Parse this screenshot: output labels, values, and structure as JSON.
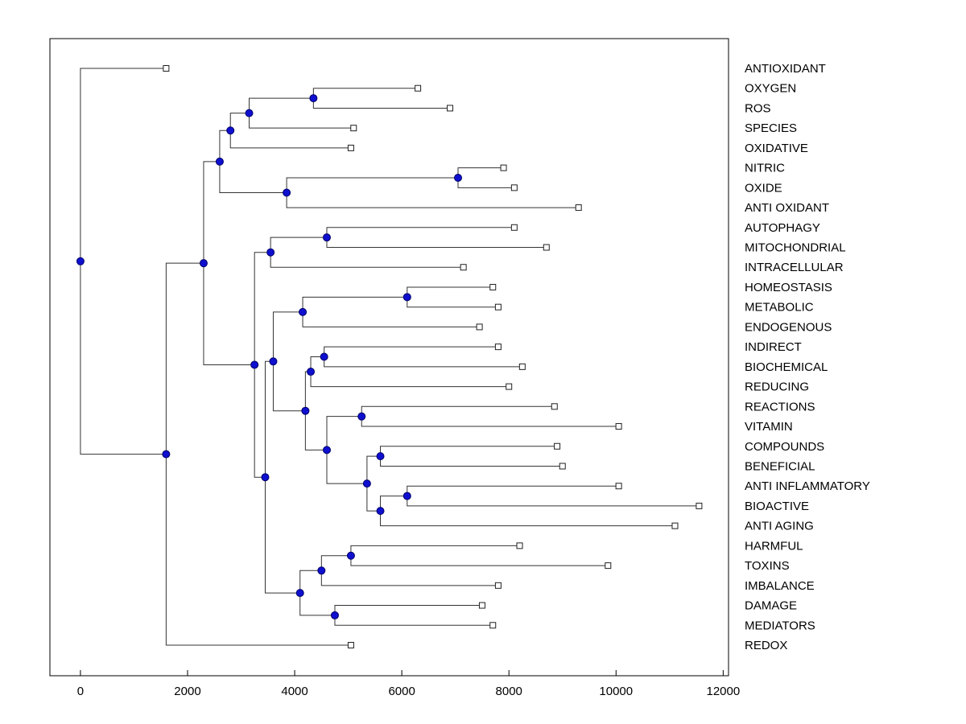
{
  "figure": {
    "background": "#ffffff"
  },
  "chart_data": {
    "type": "dendrogram",
    "orientation": "root-left-leaves-right",
    "title": "",
    "xlabel": "",
    "ylabel": "",
    "xlim": [
      -570,
      12100
    ],
    "x_ticks": [
      0,
      2000,
      4000,
      6000,
      8000,
      10000,
      12000
    ],
    "x_tick_labels": [
      "0",
      "2000",
      "4000",
      "6000",
      "8000",
      "10000",
      "12000"
    ],
    "grid": false,
    "legend": false,
    "colors": {
      "background": "#ffffff",
      "line": "#333333",
      "axis": "#000000",
      "node_fill": "#0f0fd0",
      "node_stroke": "#000066",
      "leaf_fill": "#ffffff",
      "leaf_stroke": "#202020",
      "text": "#000000"
    },
    "leaves": [
      {
        "label": "ANTIOXIDANT",
        "dist": 1600
      },
      {
        "label": "OXYGEN",
        "dist": 6300
      },
      {
        "label": "ROS",
        "dist": 6900
      },
      {
        "label": "SPECIES",
        "dist": 5100
      },
      {
        "label": "OXIDATIVE",
        "dist": 5050
      },
      {
        "label": "NITRIC",
        "dist": 7900
      },
      {
        "label": "OXIDE",
        "dist": 8100
      },
      {
        "label": "ANTI OXIDANT",
        "dist": 9300
      },
      {
        "label": "AUTOPHAGY",
        "dist": 8100
      },
      {
        "label": "MITOCHONDRIAL",
        "dist": 8700
      },
      {
        "label": "INTRACELLULAR",
        "dist": 7150
      },
      {
        "label": "HOMEOSTASIS",
        "dist": 7700
      },
      {
        "label": "METABOLIC",
        "dist": 7800
      },
      {
        "label": "ENDOGENOUS",
        "dist": 7450
      },
      {
        "label": "INDIRECT",
        "dist": 7800
      },
      {
        "label": "BIOCHEMICAL",
        "dist": 8250
      },
      {
        "label": "REDUCING",
        "dist": 8000
      },
      {
        "label": "REACTIONS",
        "dist": 8850
      },
      {
        "label": "VITAMIN",
        "dist": 10050
      },
      {
        "label": "COMPOUNDS",
        "dist": 8900
      },
      {
        "label": "BENEFICIAL",
        "dist": 9000
      },
      {
        "label": "ANTI INFLAMMATORY",
        "dist": 10050
      },
      {
        "label": "BIOACTIVE",
        "dist": 11550
      },
      {
        "label": "ANTI AGING",
        "dist": 11100
      },
      {
        "label": "HARMFUL",
        "dist": 8200
      },
      {
        "label": "TOXINS",
        "dist": 9850
      },
      {
        "label": "IMBALANCE",
        "dist": 7800
      },
      {
        "label": "DAMAGE",
        "dist": 7500
      },
      {
        "label": "MEDIATORS",
        "dist": 7700
      },
      {
        "label": "REDOX",
        "dist": 5050
      }
    ],
    "merges": [
      {
        "id": "n1",
        "a": "L1",
        "b": "L2",
        "dist": 4350
      },
      {
        "id": "n2",
        "a": "n1",
        "b": "L3",
        "dist": 3150
      },
      {
        "id": "n3",
        "a": "n2",
        "b": "L4",
        "dist": 2800
      },
      {
        "id": "n4",
        "a": "L5",
        "b": "L6",
        "dist": 7050
      },
      {
        "id": "n5",
        "a": "n4",
        "b": "L7",
        "dist": 3850
      },
      {
        "id": "n6",
        "a": "n3",
        "b": "n5",
        "dist": 2600
      },
      {
        "id": "n7",
        "a": "L8",
        "b": "L9",
        "dist": 4600
      },
      {
        "id": "n8",
        "a": "n7",
        "b": "L10",
        "dist": 3550
      },
      {
        "id": "n9",
        "a": "L11",
        "b": "L12",
        "dist": 6100
      },
      {
        "id": "n10",
        "a": "n9",
        "b": "L13",
        "dist": 4150
      },
      {
        "id": "n11",
        "a": "L14",
        "b": "L15",
        "dist": 4550
      },
      {
        "id": "n12",
        "a": "n11",
        "b": "L16",
        "dist": 4300
      },
      {
        "id": "n13",
        "a": "L17",
        "b": "L18",
        "dist": 5250
      },
      {
        "id": "n14",
        "a": "L19",
        "b": "L20",
        "dist": 5600
      },
      {
        "id": "n15",
        "a": "L21",
        "b": "L22",
        "dist": 6100
      },
      {
        "id": "n16",
        "a": "n15",
        "b": "L23",
        "dist": 5600
      },
      {
        "id": "n17",
        "a": "n14",
        "b": "n16",
        "dist": 5350
      },
      {
        "id": "n18",
        "a": "n13",
        "b": "n17",
        "dist": 4600
      },
      {
        "id": "n19",
        "a": "n12",
        "b": "n18",
        "dist": 4200
      },
      {
        "id": "n20",
        "a": "n10",
        "b": "n19",
        "dist": 3600
      },
      {
        "id": "n21",
        "a": "L24",
        "b": "L25",
        "dist": 5050
      },
      {
        "id": "n22",
        "a": "n21",
        "b": "L26",
        "dist": 4500
      },
      {
        "id": "n23",
        "a": "L27",
        "b": "L28",
        "dist": 4750
      },
      {
        "id": "n24",
        "a": "n22",
        "b": "n23",
        "dist": 4100
      },
      {
        "id": "n25",
        "a": "n20",
        "b": "n24",
        "dist": 3450
      },
      {
        "id": "n26",
        "a": "n8",
        "b": "n25",
        "dist": 3250
      },
      {
        "id": "n27",
        "a": "n6",
        "b": "n26",
        "dist": 2300
      },
      {
        "id": "n28",
        "a": "n27",
        "b": "L29",
        "dist": 1600
      },
      {
        "id": "n29",
        "a": "L0",
        "b": "n28",
        "dist": 0
      }
    ]
  }
}
